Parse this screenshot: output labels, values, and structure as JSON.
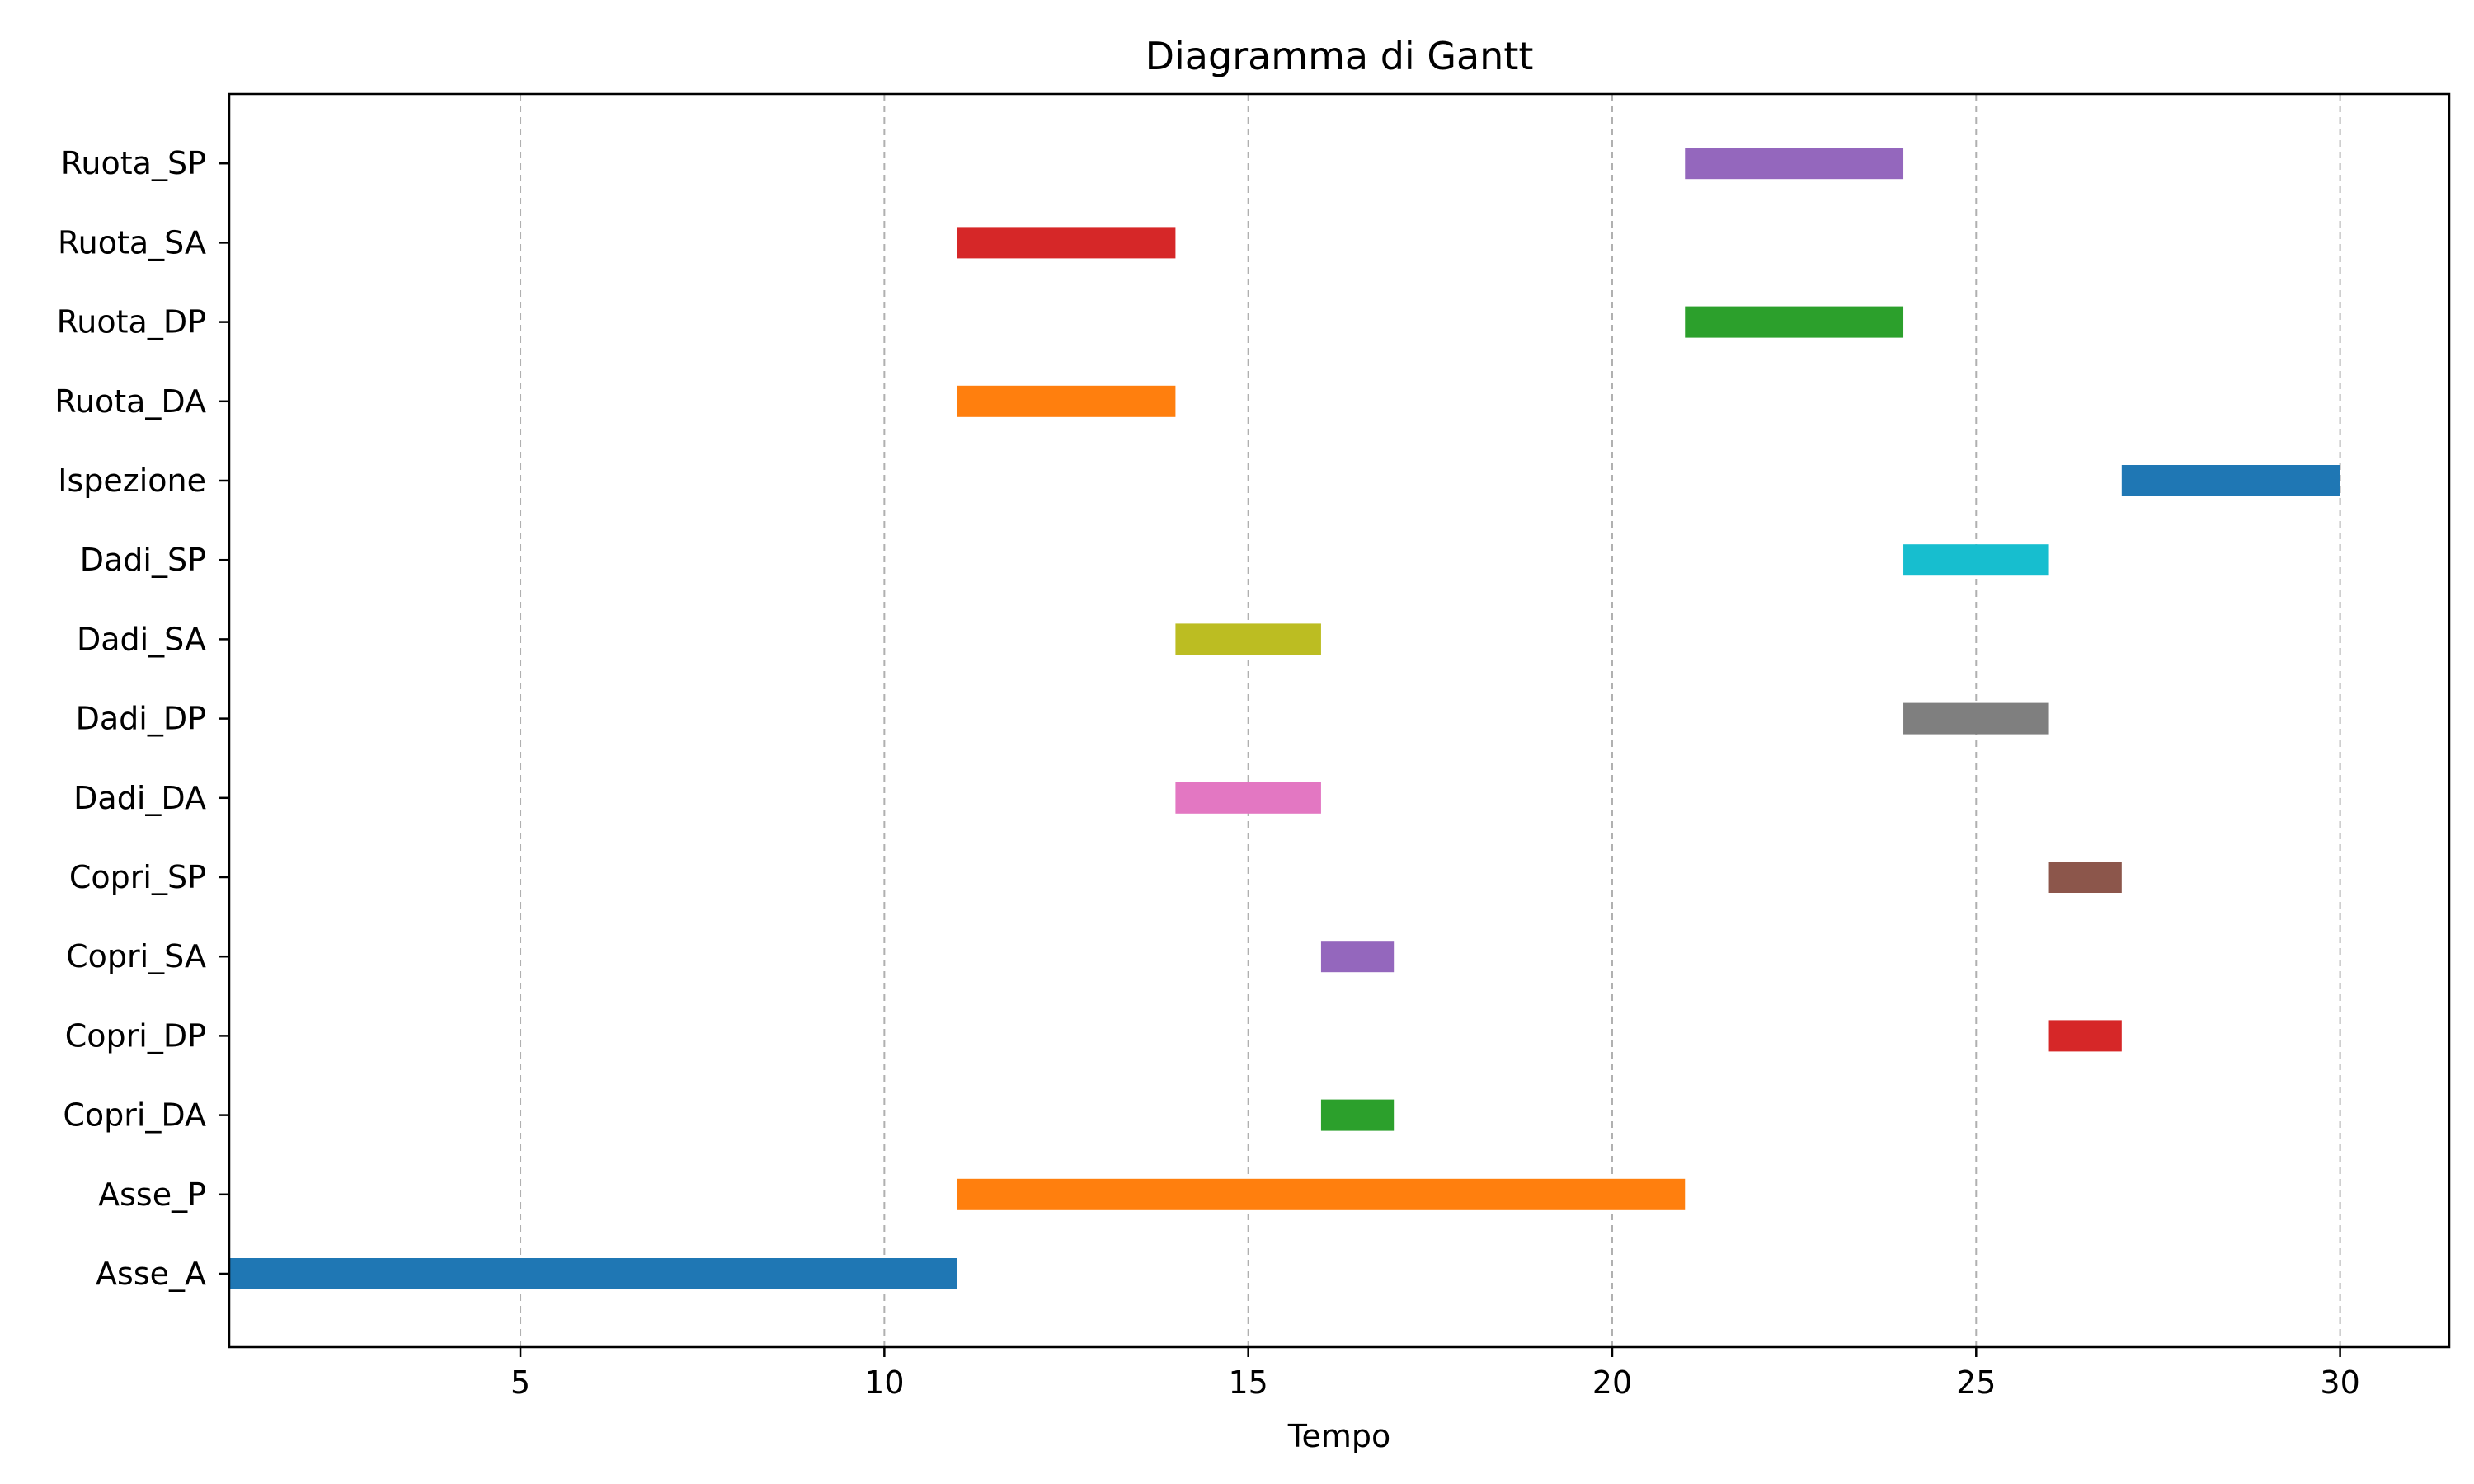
{
  "chart_data": {
    "type": "gantt",
    "title": "Diagramma di Gantt",
    "xlabel": "Tempo",
    "ylabel": "",
    "xlim": [
      1,
      31.5
    ],
    "xticks": [
      5,
      10,
      15,
      20,
      25,
      30
    ],
    "xtick_labels": [
      "5",
      "10",
      "15",
      "20",
      "25",
      "30"
    ],
    "grid": "x-dashed",
    "tasks": [
      {
        "name": "Asse_A",
        "start": 1,
        "end": 11,
        "color": "#1f77b4"
      },
      {
        "name": "Asse_P",
        "start": 11,
        "end": 21,
        "color": "#ff7f0e"
      },
      {
        "name": "Copri_DA",
        "start": 16,
        "end": 17,
        "color": "#2ca02c"
      },
      {
        "name": "Copri_DP",
        "start": 26,
        "end": 27,
        "color": "#d62728"
      },
      {
        "name": "Copri_SA",
        "start": 16,
        "end": 17,
        "color": "#9467bd"
      },
      {
        "name": "Copri_SP",
        "start": 26,
        "end": 27,
        "color": "#8c564b"
      },
      {
        "name": "Dadi_DA",
        "start": 14,
        "end": 16,
        "color": "#e377c2"
      },
      {
        "name": "Dadi_DP",
        "start": 24,
        "end": 26,
        "color": "#7f7f7f"
      },
      {
        "name": "Dadi_SA",
        "start": 14,
        "end": 16,
        "color": "#bcbd22"
      },
      {
        "name": "Dadi_SP",
        "start": 24,
        "end": 26,
        "color": "#17becf"
      },
      {
        "name": "Ispezione",
        "start": 27,
        "end": 30,
        "color": "#1f77b4"
      },
      {
        "name": "Ruota_DA",
        "start": 11,
        "end": 14,
        "color": "#ff7f0e"
      },
      {
        "name": "Ruota_DP",
        "start": 21,
        "end": 24,
        "color": "#2ca02c"
      },
      {
        "name": "Ruota_SA",
        "start": 11,
        "end": 14,
        "color": "#d62728"
      },
      {
        "name": "Ruota_SP",
        "start": 21,
        "end": 24,
        "color": "#9467bd"
      }
    ]
  }
}
